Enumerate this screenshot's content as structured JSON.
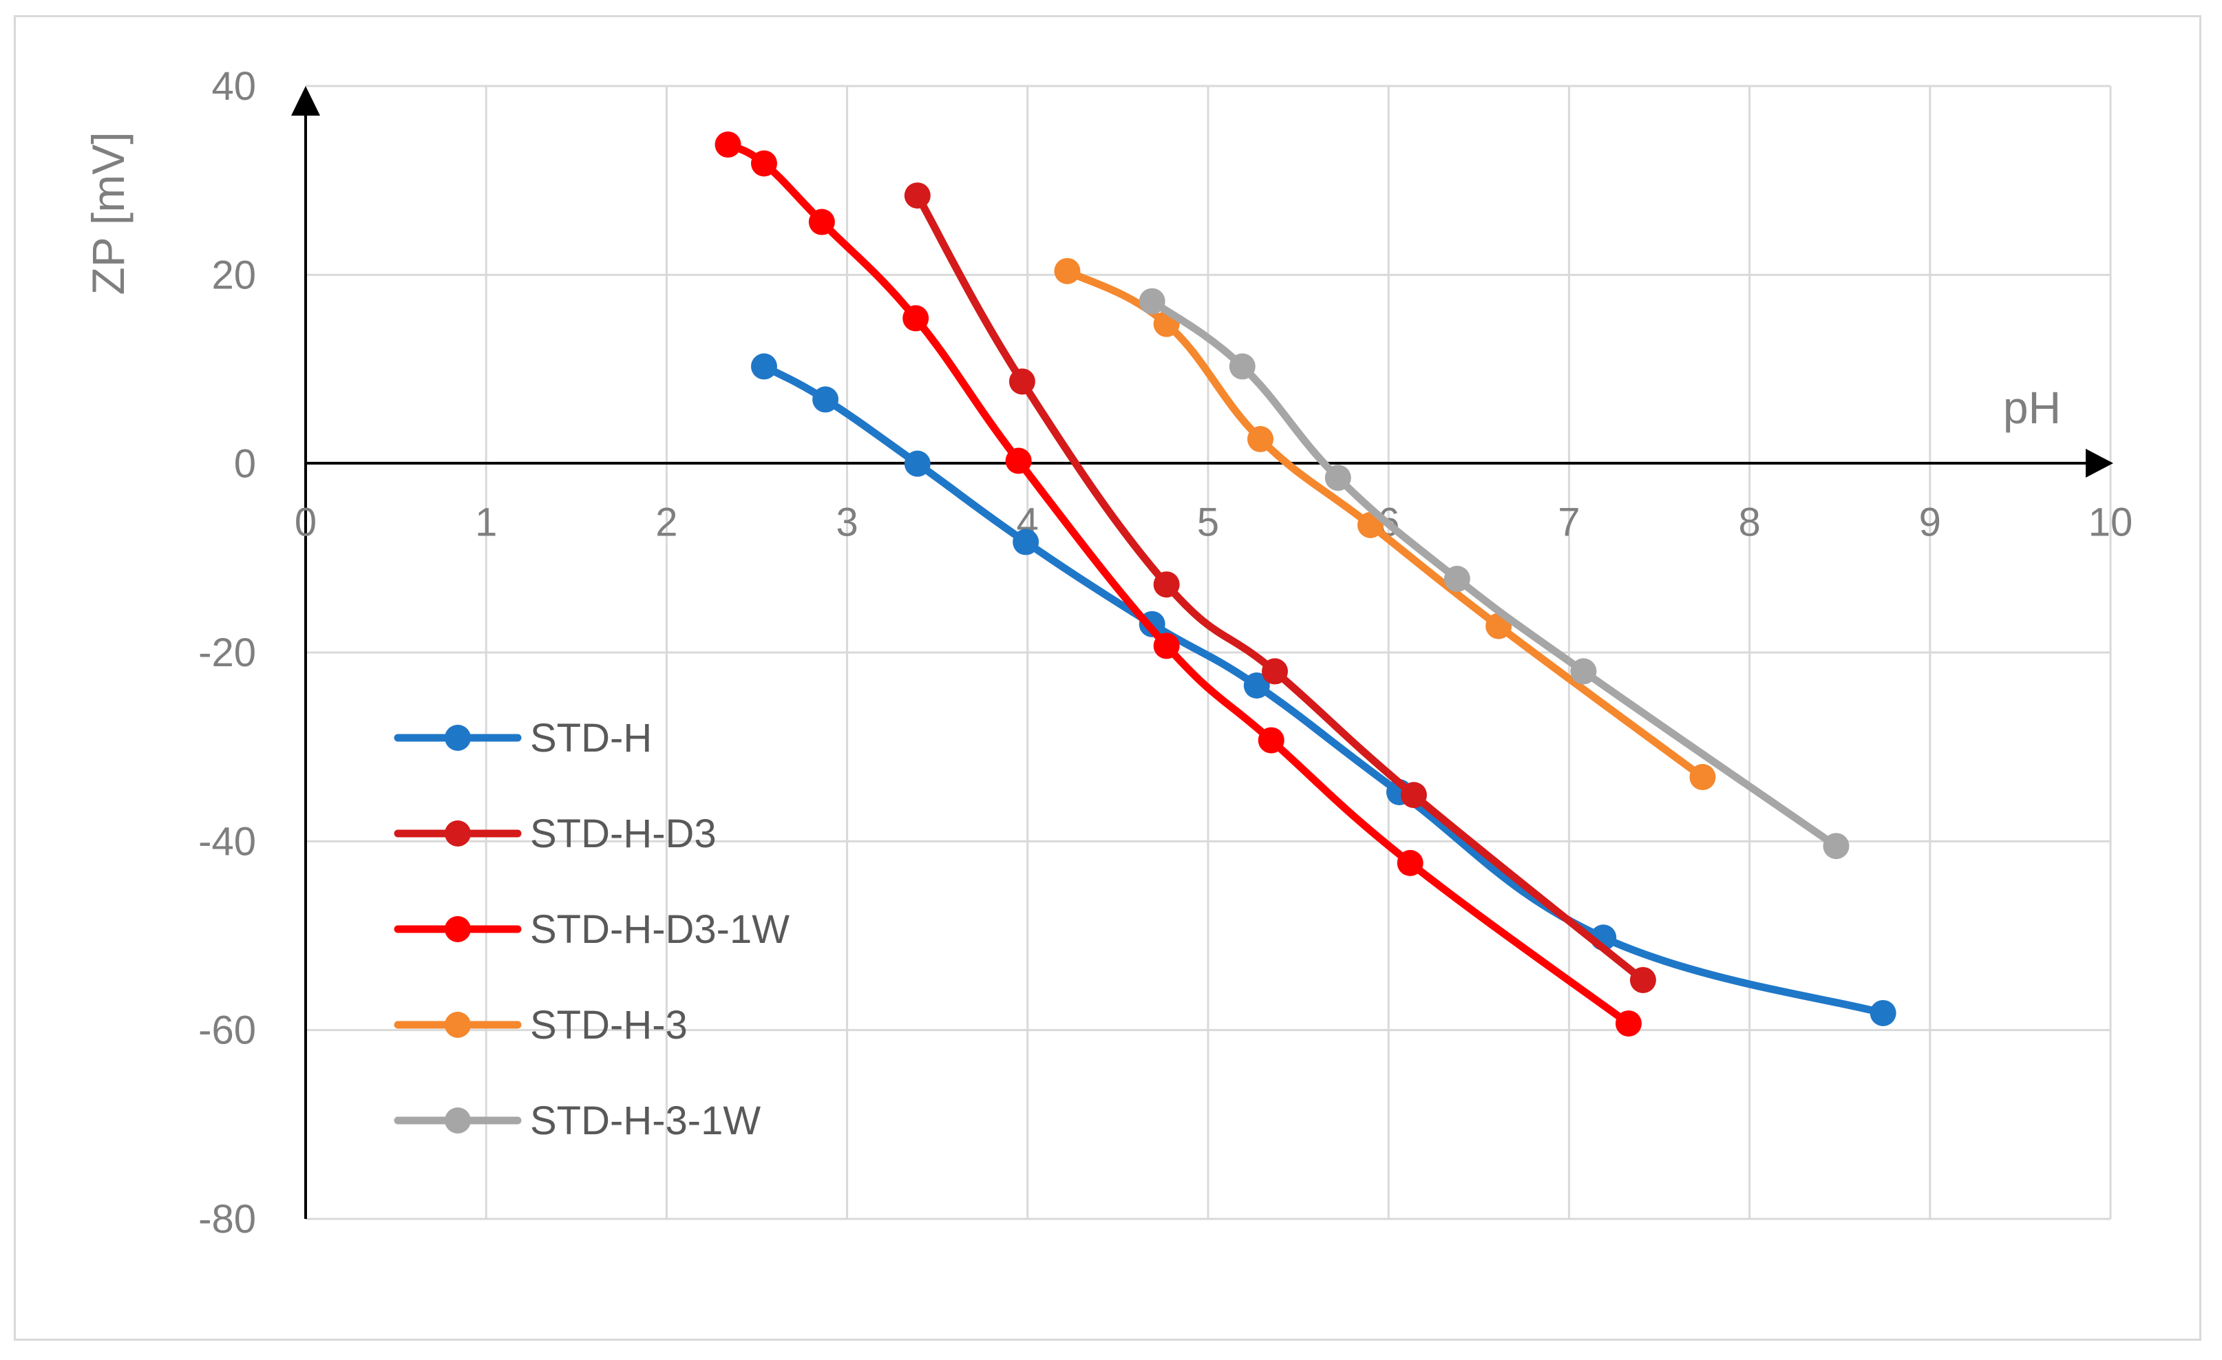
{
  "chart_data": {
    "type": "line",
    "title": "",
    "xlabel": "pH",
    "ylabel": "ZP [mV]",
    "xlim": [
      0,
      10
    ],
    "ylim": [
      -80,
      40
    ],
    "xticks": [
      0,
      1,
      2,
      3,
      4,
      5,
      6,
      7,
      8,
      9,
      10
    ],
    "yticks": [
      40,
      20,
      0,
      -20,
      -40,
      -60,
      -80
    ],
    "grid": true,
    "legend_position": "lower-left",
    "series": [
      {
        "name": "STD-H",
        "color": "#1f77c8",
        "x": [
          2.54,
          2.88,
          3.39,
          3.99,
          4.69,
          5.27,
          6.06,
          7.19,
          8.74
        ],
        "y": [
          10.3,
          6.8,
          0.0,
          -8.3,
          -17.0,
          -23.5,
          -34.8,
          -50.2,
          -58.2
        ]
      },
      {
        "name": "STD-H-D3",
        "color": "#d41a1a",
        "x": [
          3.39,
          3.97,
          4.77,
          5.37,
          6.14,
          7.41
        ],
        "y": [
          28.4,
          8.7,
          -12.8,
          -22.0,
          -35.1,
          -54.7
        ]
      },
      {
        "name": "STD-H-D3-1W",
        "color": "#ff0000",
        "x": [
          2.34,
          2.54,
          2.86,
          3.38,
          3.95,
          4.77,
          5.35,
          6.12,
          7.33
        ],
        "y": [
          33.8,
          31.8,
          25.6,
          15.4,
          0.3,
          -19.3,
          -29.3,
          -42.3,
          -59.3
        ]
      },
      {
        "name": "STD-H-3",
        "color": "#f5872d",
        "x": [
          4.22,
          4.77,
          5.29,
          5.9,
          6.61,
          7.74
        ],
        "y": [
          20.4,
          14.8,
          2.6,
          -6.5,
          -17.2,
          -33.2
        ]
      },
      {
        "name": "STD-H-3-1W",
        "color": "#a6a6a6",
        "x": [
          4.69,
          5.19,
          5.72,
          6.38,
          7.08,
          8.48
        ],
        "y": [
          17.2,
          10.3,
          -1.5,
          -12.2,
          -22.0,
          -40.5
        ]
      }
    ]
  }
}
